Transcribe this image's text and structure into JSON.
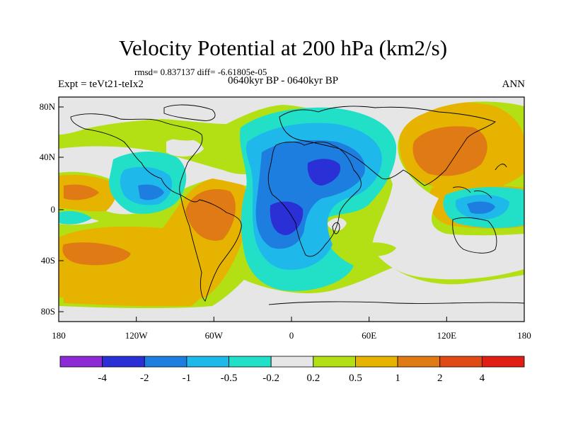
{
  "header": {
    "title": "Velocity Potential at 200 hPa (km2/s)",
    "stats": "rmsd= 0.837137 diff= -6.61805e-05",
    "experiment": "Expt = teVt21-teIx2",
    "period": "0640kyr BP - 0640kyr BP",
    "season": "ANN"
  },
  "map": {
    "projection": "cylindrical equidistant",
    "lon_range": [
      -180,
      180
    ],
    "lat_range": [
      -90,
      90
    ],
    "x_ticks": [
      "180",
      "120W",
      "60W",
      "0",
      "60E",
      "120E",
      "180"
    ],
    "y_ticks": [
      "80N",
      "40N",
      "0",
      "40S",
      "80S"
    ]
  },
  "colorbar": {
    "levels": [
      "-4",
      "-2",
      "-1",
      "-0.5",
      "-0.2",
      "0.2",
      "0.5",
      "1",
      "2",
      "4"
    ],
    "colors": [
      "#8c2bd6",
      "#2a2fd6",
      "#1e7ee0",
      "#1eb9ea",
      "#22e0c8",
      "#e6e6e6",
      "#b3e015",
      "#e6b400",
      "#e07a14",
      "#e04a14",
      "#e01e14"
    ]
  }
}
